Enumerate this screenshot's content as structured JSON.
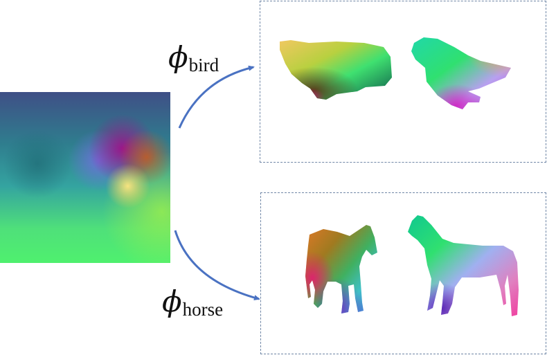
{
  "labels": {
    "bird": {
      "symbol": "ϕ",
      "subscript": "bird"
    },
    "horse": {
      "symbol": "ϕ",
      "subscript": "horse"
    }
  },
  "colors": {
    "arrow": "#4a72c2",
    "panel_border": "#6f86a6"
  }
}
